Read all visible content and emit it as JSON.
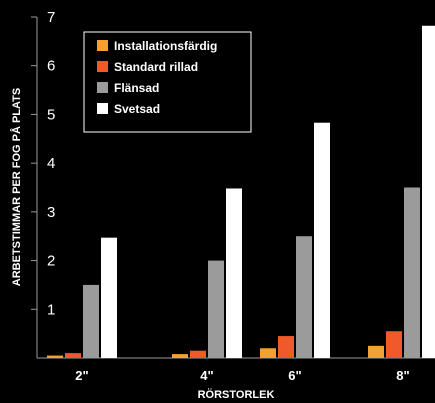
{
  "chart_data": {
    "type": "bar",
    "title": "",
    "xlabel": "RÖRSTORLEK",
    "ylabel": "ARBETSTIMMAR PER FOG PÅ PLATS",
    "ylim": [
      0,
      7
    ],
    "yticks": [
      "1",
      "2",
      "3",
      "4",
      "5",
      "6",
      "7"
    ],
    "categories": [
      "2\"",
      "4\"",
      "6\"",
      "8\""
    ],
    "legend_position": "top-left",
    "grid": false,
    "series": [
      {
        "name": "Installationsfärdig",
        "color": "#F5A032",
        "values": [
          0.05,
          0.08,
          0.2,
          0.25
        ]
      },
      {
        "name": "Standard rillad",
        "color": "#F05A28",
        "values": [
          0.1,
          0.15,
          0.45,
          0.55
        ]
      },
      {
        "name": "Flänsad",
        "color": "#9B9B9B",
        "values": [
          1.5,
          2.0,
          2.5,
          3.5
        ]
      },
      {
        "name": "Svetsad",
        "color": "#FFFFFF",
        "values": [
          2.47,
          3.48,
          4.83,
          6.82
        ]
      }
    ]
  }
}
